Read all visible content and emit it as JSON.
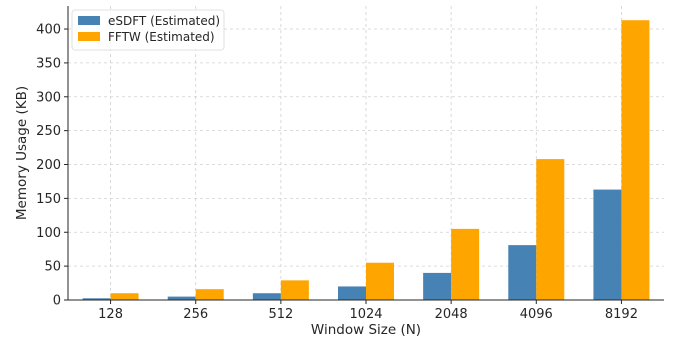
{
  "chart_data": {
    "type": "bar",
    "categories": [
      "128",
      "256",
      "512",
      "1024",
      "2048",
      "4096",
      "8192"
    ],
    "series": [
      {
        "name": "eSDFT (Estimated)",
        "color": "#4682b4",
        "values": [
          2.5,
          5,
          10,
          20,
          40,
          81,
          163
        ]
      },
      {
        "name": "FFTW (Estimated)",
        "color": "#ffa500",
        "values": [
          10,
          16,
          29,
          55,
          105,
          208,
          413
        ]
      }
    ],
    "title": "",
    "xlabel": "Window Size (N)",
    "ylabel": "Memory Usage (KB)",
    "ylim": [
      0,
      434
    ],
    "yticks": [
      0,
      50,
      100,
      150,
      200,
      250,
      300,
      350,
      400
    ],
    "grid": true,
    "legend_position": "top-left"
  }
}
